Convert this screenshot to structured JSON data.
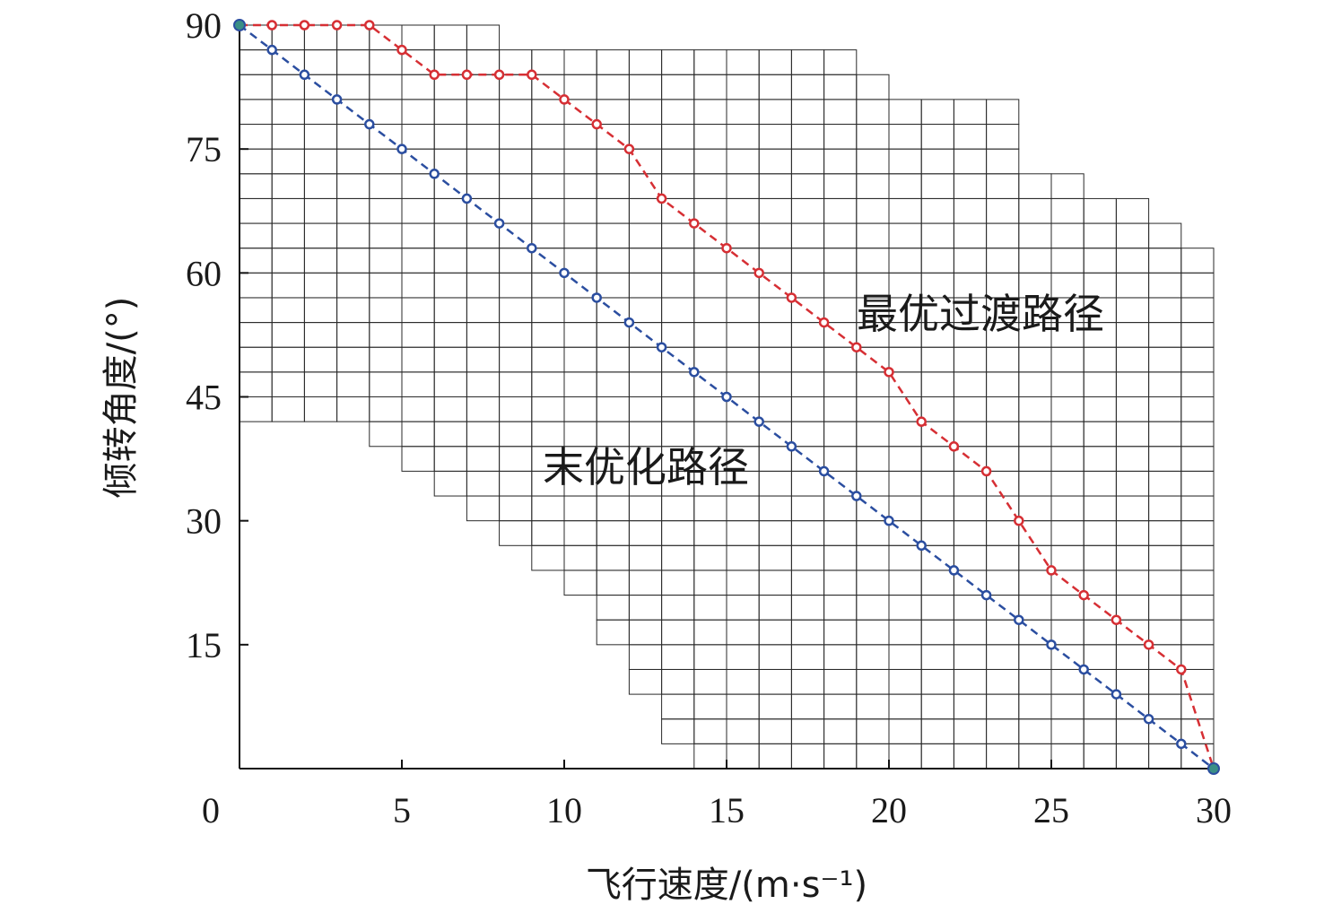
{
  "chart_data": {
    "type": "line",
    "xlabel": "飞行速度/(m·s⁻¹)",
    "ylabel": "倾转角度/(°)",
    "xlim": [
      0,
      30
    ],
    "ylim": [
      0,
      90
    ],
    "x_ticks": [
      "0",
      "5",
      "10",
      "15",
      "20",
      "25",
      "30"
    ],
    "y_ticks": [
      "15",
      "30",
      "45",
      "60",
      "75",
      "90"
    ],
    "grid": "stepped feasible-region grid, 1 m/s × 3° cells",
    "feasible_region": {
      "x": [
        0,
        1,
        2,
        3,
        4,
        5,
        6,
        7,
        8,
        9,
        10,
        11,
        12,
        13,
        14,
        15,
        16,
        17,
        18,
        19,
        20,
        21,
        22,
        23,
        24,
        25,
        26,
        27,
        28,
        29
      ],
      "lower": [
        42,
        42,
        42,
        42,
        39,
        36,
        33,
        30,
        27,
        24,
        21,
        15,
        9,
        3,
        0,
        0,
        0,
        0,
        0,
        0,
        0,
        0,
        0,
        0,
        0,
        0,
        0,
        0,
        0,
        0
      ],
      "upper": [
        90,
        90,
        90,
        90,
        90,
        90,
        90,
        90,
        87,
        87,
        87,
        87,
        87,
        87,
        87,
        87,
        87,
        87,
        87,
        84,
        81,
        81,
        81,
        81,
        72,
        72,
        69,
        69,
        66,
        63
      ]
    },
    "annotations": [
      "最优过渡路径",
      "末优化路径"
    ],
    "series": [
      {
        "color": "#d62f34",
        "x": [
          0,
          1,
          2,
          3,
          4,
          5,
          6,
          7,
          8,
          9,
          10,
          11,
          12,
          13,
          14,
          15,
          16,
          17,
          18,
          19,
          20,
          21,
          22,
          23,
          24,
          25,
          26,
          27,
          28,
          29,
          30
        ],
        "y": [
          90,
          90,
          90,
          90,
          90,
          87,
          84,
          84,
          84,
          84,
          81,
          78,
          75,
          69,
          66,
          63,
          60,
          57,
          54,
          51,
          48,
          42,
          39,
          36,
          30,
          24,
          21,
          18,
          15,
          12,
          0
        ]
      },
      {
        "color": "#2b4ea0",
        "x": [
          0,
          1,
          2,
          3,
          4,
          5,
          6,
          7,
          8,
          9,
          10,
          11,
          12,
          13,
          14,
          15,
          16,
          17,
          18,
          19,
          20,
          21,
          22,
          23,
          24,
          25,
          26,
          27,
          28,
          29,
          30
        ],
        "y": [
          90,
          87,
          84,
          81,
          78,
          75,
          72,
          69,
          66,
          63,
          60,
          57,
          54,
          51,
          48,
          45,
          42,
          39,
          36,
          33,
          30,
          27,
          24,
          21,
          18,
          15,
          12,
          9,
          6,
          3,
          0
        ]
      }
    ],
    "endpoint_color": "#3a8f86"
  }
}
